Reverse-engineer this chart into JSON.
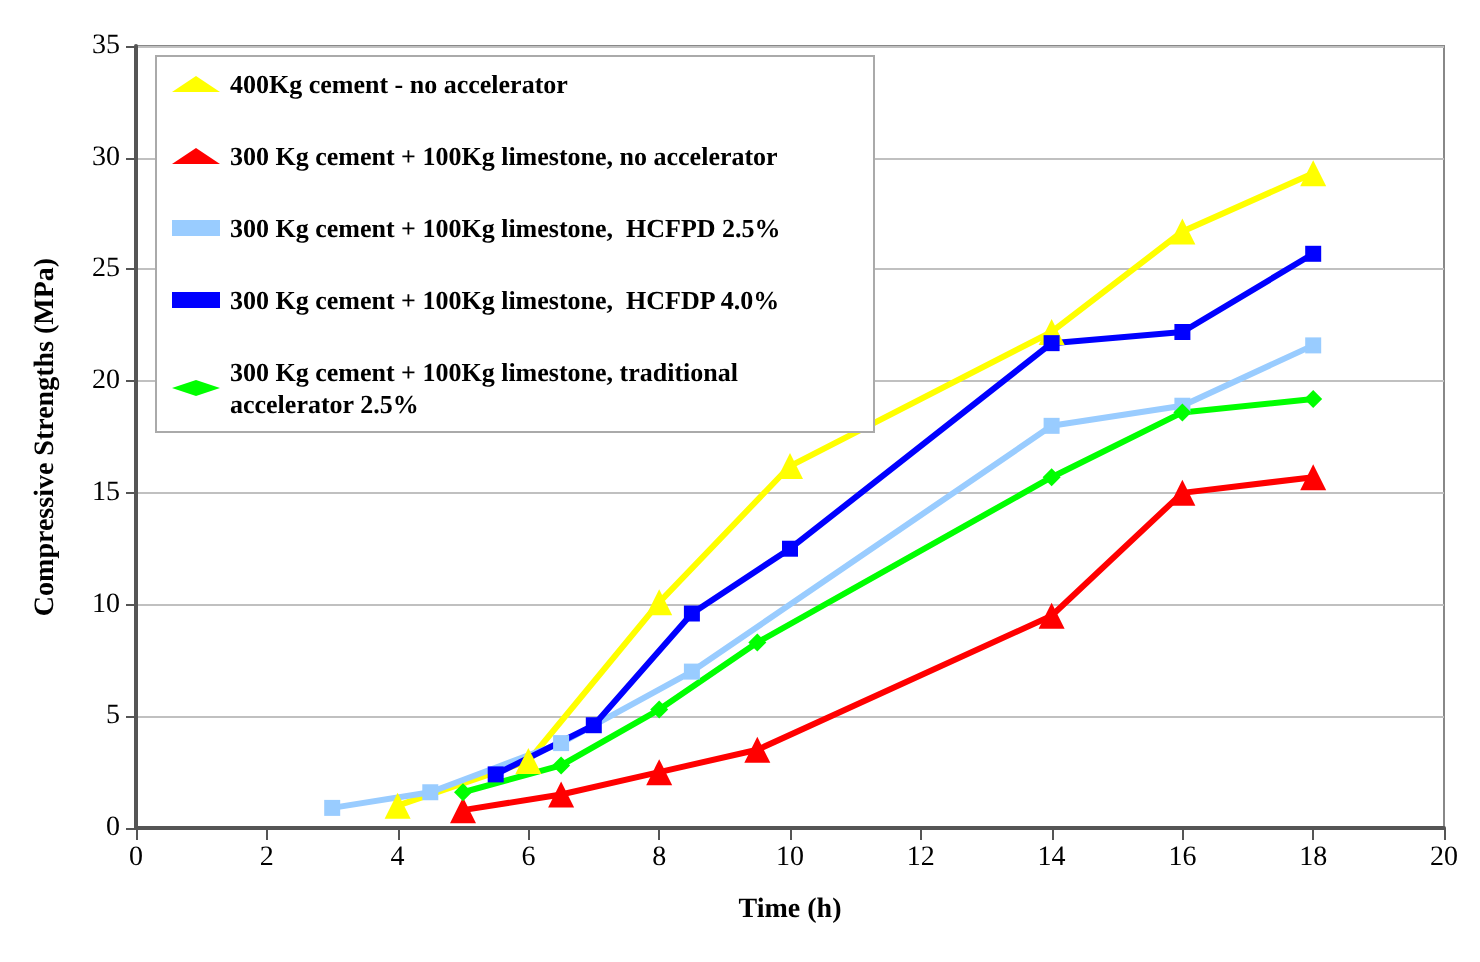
{
  "chart_data": {
    "type": "line",
    "xlabel": "Time (h)",
    "ylabel": "Compressive Strengths (MPa)",
    "xlim": [
      0,
      20
    ],
    "xticks": [
      0,
      2,
      4,
      6,
      8,
      10,
      12,
      14,
      16,
      18,
      20
    ],
    "ylim": [
      0,
      35
    ],
    "yticks": [
      0,
      5,
      10,
      15,
      20,
      25,
      30,
      35
    ],
    "grid": "y",
    "legend": "top left",
    "line_style": "solid",
    "series": [
      {
        "name": "400Kg cement - no accelerator",
        "color": "#ffff00",
        "marker": "triangle",
        "x": [
          4,
          6,
          8,
          10,
          14,
          16,
          18
        ],
        "values": [
          1.0,
          3.0,
          10.1,
          16.2,
          22.2,
          26.7,
          29.3
        ]
      },
      {
        "name": "300 Kg cement + 100Kg limestone, no accelerator",
        "color": "#ff0000",
        "marker": "triangle",
        "x": [
          5,
          6.5,
          8,
          9.5,
          14,
          16,
          18
        ],
        "values": [
          0.8,
          1.5,
          2.5,
          3.5,
          9.5,
          15.0,
          15.7
        ]
      },
      {
        "name": "300 Kg cement + 100Kg limestone,  HCFPD 2.5%",
        "color": "#99ccff",
        "marker": "square",
        "x": [
          3,
          4.5,
          6.5,
          8.5,
          14,
          16,
          18
        ],
        "values": [
          0.9,
          1.6,
          3.8,
          7.0,
          18.0,
          18.9,
          21.6
        ]
      },
      {
        "name": "300 Kg cement + 100Kg limestone,  HCFDP 4.0%",
        "color": "#0000ff",
        "marker": "square",
        "x": [
          5.5,
          7,
          8.5,
          10,
          14,
          16,
          18
        ],
        "values": [
          2.4,
          4.6,
          9.6,
          12.5,
          21.7,
          22.2,
          25.7
        ]
      },
      {
        "name": "300 Kg cement + 100Kg limestone, traditional accelerator 2.5%",
        "color": "#00ff00",
        "marker": "diamond",
        "x": [
          5,
          6.5,
          8,
          9.5,
          14,
          16,
          18
        ],
        "values": [
          1.6,
          2.8,
          5.3,
          8.3,
          15.7,
          18.6,
          19.2
        ]
      }
    ]
  }
}
